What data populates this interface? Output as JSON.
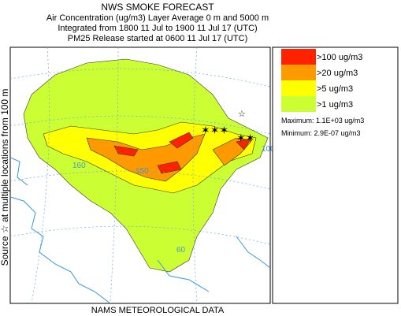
{
  "header": {
    "title": "NWS SMOKE FORECAST",
    "lines": [
      "Air Concentration (ug/m3) Layer Average    0 m and  5000 m",
      "Integrated from 1800 11 Jul to 1900 11 Jul 17 (UTC)",
      "PM25 Release started at 0600 11 Jul 17 (UTC)"
    ]
  },
  "legend": {
    "entries": [
      {
        "label": ">100 ug/m3",
        "color": "#ff2200"
      },
      {
        "label": ">20 ug/m3",
        "color": "#ff9900"
      },
      {
        "label": ">5 ug/m3",
        "color": "#ffff00"
      },
      {
        "label": ">1 ug/m3",
        "color": "#ccff33"
      }
    ],
    "maximum": "Maximum: 1.1E+03 ug/m3",
    "minimum": "Minimum: 2.9E-07 ug/m3"
  },
  "map": {
    "side_label": "Source ☆  at multiple locations   from  100 m",
    "footer": "NAMS METEOROLOGICAL DATA",
    "contour_labels": [
      "150",
      "160",
      "100",
      "60"
    ]
  }
}
